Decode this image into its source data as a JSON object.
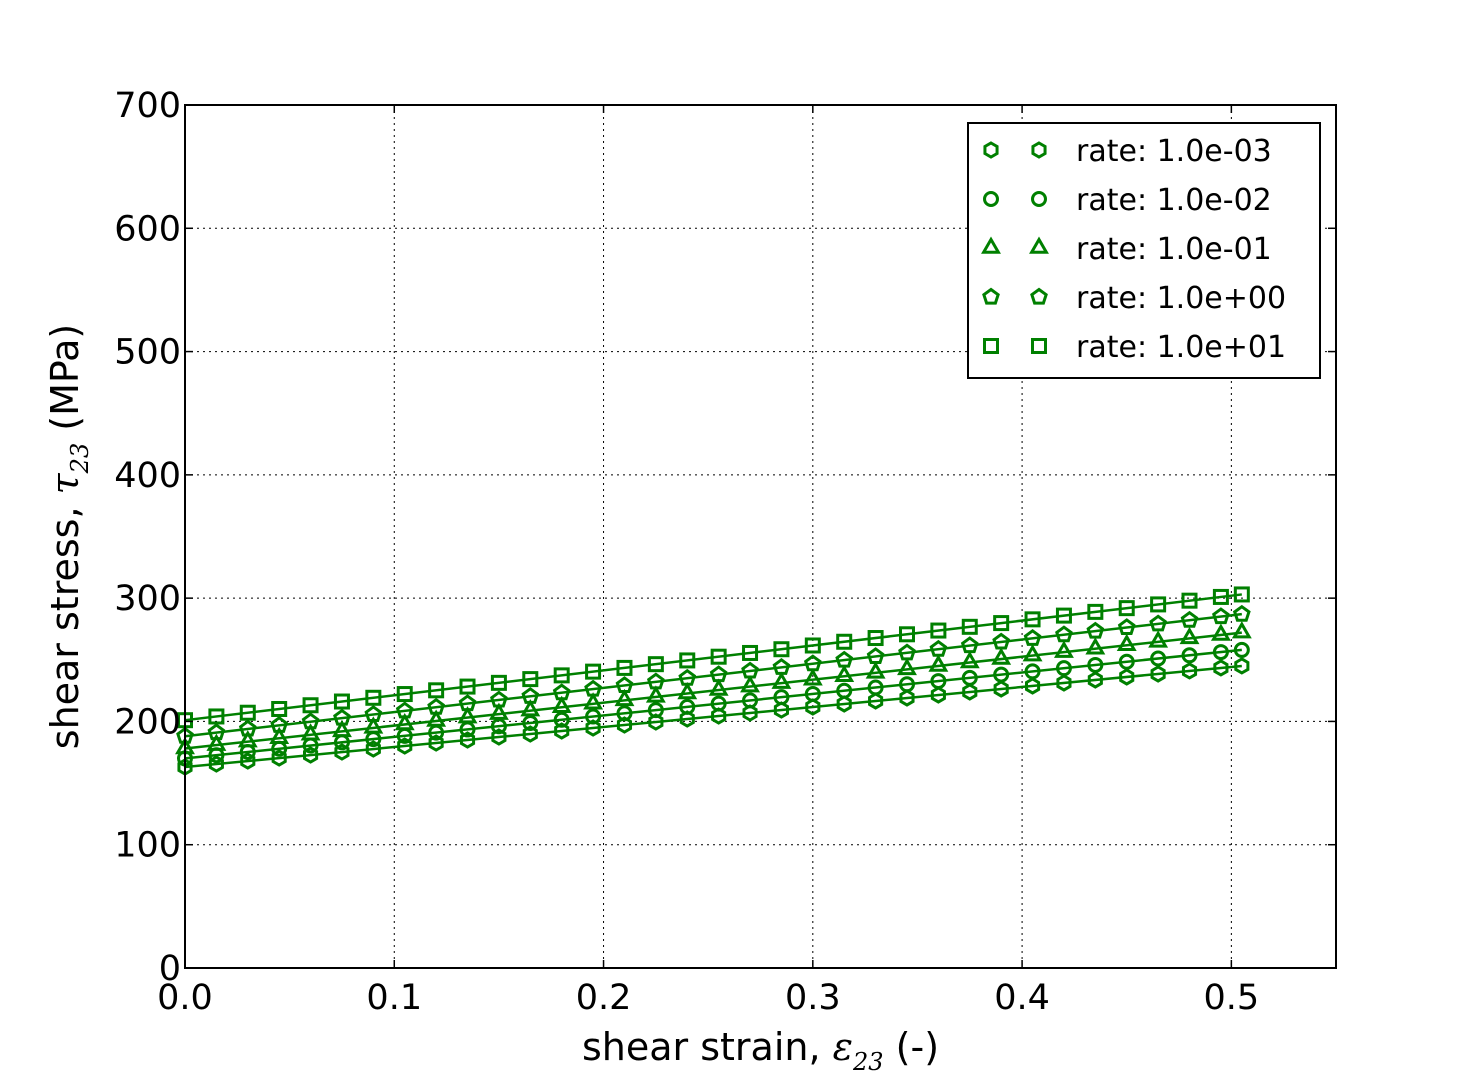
{
  "chart_data": {
    "type": "scatter",
    "title": "",
    "xlabel": "shear strain, ε23 (-)",
    "ylabel": "shear stress, τ23 (MPa)",
    "xlabel_parts": {
      "prefix": "shear strain, ",
      "symbol": "ε",
      "sub": "23",
      "suffix": " (-)"
    },
    "ylabel_parts": {
      "prefix": "shear stress, ",
      "symbol": "τ",
      "sub": "23",
      "suffix": " (MPa)"
    },
    "xlim": [
      0.0,
      0.55
    ],
    "ylim": [
      0,
      700
    ],
    "xticks": [
      0.0,
      0.1,
      0.2,
      0.3,
      0.4,
      0.5
    ],
    "xtick_labels": [
      "0.0",
      "0.1",
      "0.2",
      "0.3",
      "0.4",
      "0.5"
    ],
    "yticks": [
      0,
      100,
      200,
      300,
      400,
      500,
      600,
      700
    ],
    "ytick_labels": [
      "0",
      "100",
      "200",
      "300",
      "400",
      "500",
      "600",
      "700"
    ],
    "grid": true,
    "legend_position": "top-right",
    "color": "#008000",
    "x": [
      0.0,
      0.015,
      0.03,
      0.045,
      0.06,
      0.075,
      0.09,
      0.105,
      0.12,
      0.135,
      0.15,
      0.165,
      0.18,
      0.195,
      0.21,
      0.225,
      0.24,
      0.255,
      0.27,
      0.285,
      0.3,
      0.315,
      0.33,
      0.345,
      0.36,
      0.375,
      0.39,
      0.405,
      0.42,
      0.435,
      0.45,
      0.465,
      0.48,
      0.495
    ],
    "series": [
      {
        "name": "rate: 1.0e-03",
        "marker": "hexagon",
        "start": 163,
        "end": 245
      },
      {
        "name": "rate: 1.0e-02",
        "marker": "circle",
        "start": 170,
        "end": 258
      },
      {
        "name": "rate: 1.0e-01",
        "marker": "triangle",
        "start": 178,
        "end": 272
      },
      {
        "name": "rate: 1.0e+00",
        "marker": "pentagon",
        "start": 188,
        "end": 287
      },
      {
        "name": "rate: 1.0e+01",
        "marker": "square",
        "start": 201,
        "end": 303
      }
    ]
  }
}
